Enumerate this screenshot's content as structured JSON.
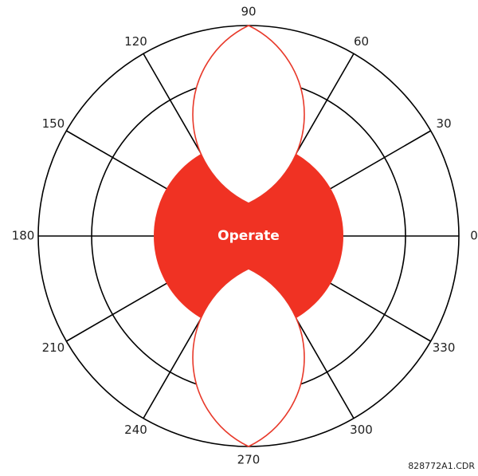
{
  "diagram": {
    "angle_labels": [
      0,
      30,
      60,
      90,
      120,
      150,
      180,
      210,
      240,
      270,
      300,
      330
    ],
    "region_label": "Operate",
    "figure_id": "828772A1.CDR"
  }
}
